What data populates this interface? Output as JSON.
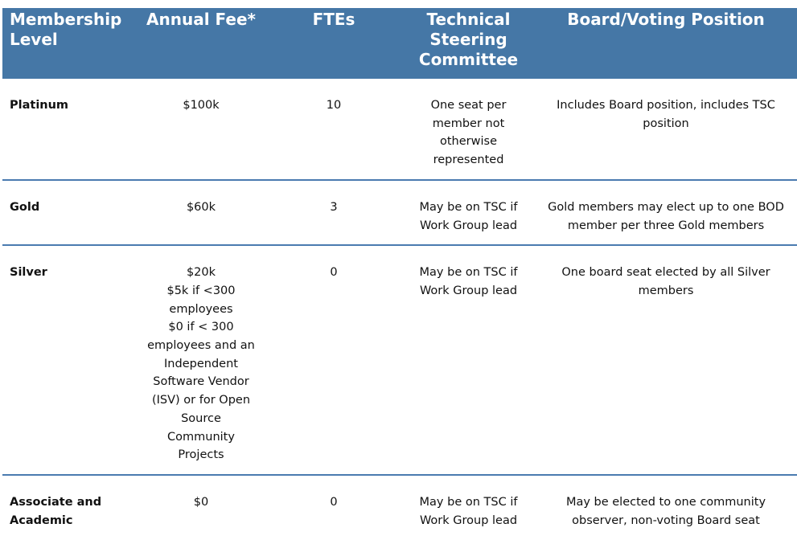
{
  "colors": {
    "header_bg": "#4577a6",
    "divider": "#4a7bb0"
  },
  "headers": [
    [
      "Membership",
      "Level"
    ],
    [
      "Annual Fee*"
    ],
    [
      "FTEs"
    ],
    [
      "Technical",
      "Steering",
      "Committee"
    ],
    [
      "Board/Voting Position"
    ]
  ],
  "rows": [
    {
      "level": [
        "Platinum"
      ],
      "fee": [
        "$100k"
      ],
      "ftes": [
        "10"
      ],
      "tsc": [
        "One seat per",
        "member not",
        "otherwise",
        "represented"
      ],
      "board": [
        "Includes Board position, includes TSC",
        "position"
      ]
    },
    {
      "level": [
        "Gold"
      ],
      "fee": [
        "$60k"
      ],
      "ftes": [
        "3"
      ],
      "tsc": [
        "May be on TSC if",
        "Work Group lead"
      ],
      "board": [
        "Gold members may elect up to one BOD",
        "member per three Gold members"
      ]
    },
    {
      "level": [
        "Silver"
      ],
      "fee": [
        "$20k",
        "$5k if <300",
        "employees",
        "$0 if < 300",
        "employees and an",
        "Independent",
        "Software Vendor",
        "(ISV) or for Open",
        "Source",
        "Community",
        "Projects"
      ],
      "ftes": [
        "0"
      ],
      "tsc": [
        "May be on TSC if",
        "Work Group lead"
      ],
      "board": [
        "One board seat elected by all Silver",
        "members"
      ]
    },
    {
      "level": [
        "Associate and",
        "Academic"
      ],
      "fee": [
        "$0"
      ],
      "ftes": [
        "0"
      ],
      "tsc": [
        "May be on TSC if",
        "Work Group lead"
      ],
      "board": [
        "May be elected to one community",
        "observer, non-voting Board seat"
      ]
    }
  ]
}
